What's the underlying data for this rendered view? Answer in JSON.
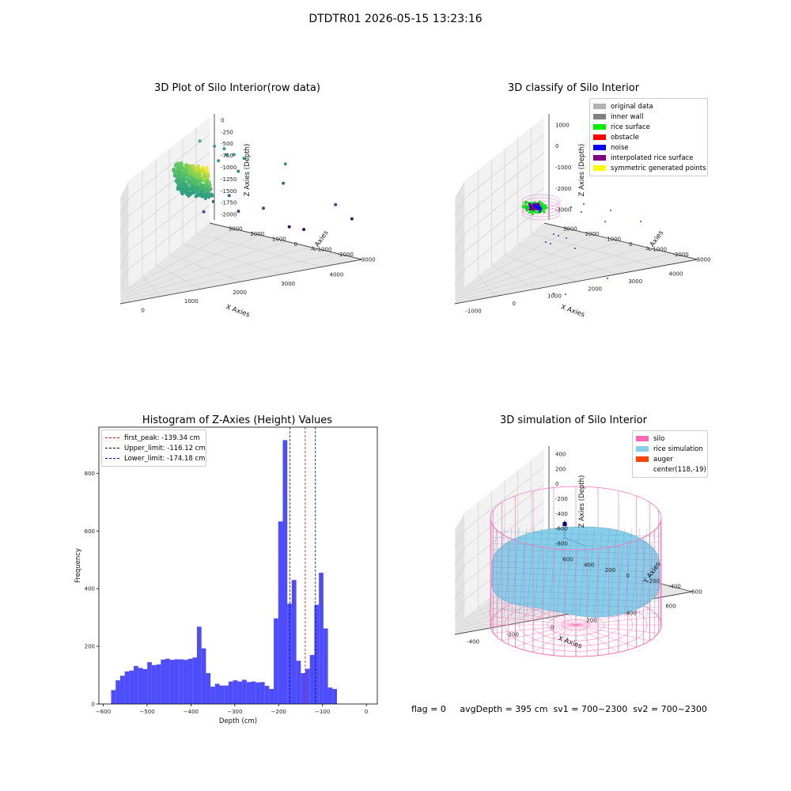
{
  "suptitle": "DTDTR01 2026-05-15 13:23:16",
  "footer": "flag = 0     avgDepth = 395 cm  sv1 = 700~2300  sv2 = 700~2300",
  "chart_data": [
    {
      "type": "scatter",
      "title": "3D Plot of Silo Interior(row data)",
      "xlabel": "X Axies",
      "ylabel": "Y Axies",
      "zlabel": "Z Axies (Depth)",
      "x_ticks": [
        "0",
        "1000",
        "2000",
        "3000",
        "4000"
      ],
      "y_ticks": [
        "-3000",
        "-2000",
        "-1000",
        "0",
        "1000",
        "2000",
        "3000"
      ],
      "z_ticks": [
        "0",
        "-250",
        "-500",
        "-750",
        "-1000",
        "-1250",
        "-1500",
        "-1750",
        "-2000"
      ],
      "xlim": [
        -700,
        4200
      ],
      "ylim": [
        -3300,
        3300
      ],
      "zlim": [
        -2100,
        100
      ],
      "colormap": "viridis",
      "cluster": {
        "x_range": [
          -200,
          300
        ],
        "y_range": [
          -400,
          400
        ],
        "z_range": [
          -100,
          -300
        ],
        "points": 520
      },
      "points": [
        {
          "x": 800,
          "y": 500,
          "z": -450
        },
        {
          "x": 1100,
          "y": 400,
          "z": -550
        },
        {
          "x": 1300,
          "y": 300,
          "z": -600
        },
        {
          "x": 1500,
          "y": 200,
          "z": -700
        },
        {
          "x": 1350,
          "y": 150,
          "z": -680
        },
        {
          "x": 1200,
          "y": -300,
          "z": -680
        },
        {
          "x": 1700,
          "y": 350,
          "z": -800
        },
        {
          "x": 1600,
          "y": -200,
          "z": -900
        },
        {
          "x": 2600,
          "y": -1800,
          "z": -700
        },
        {
          "x": 900,
          "y": 600,
          "z": -1150
        },
        {
          "x": 1100,
          "y": -400,
          "z": -1250
        },
        {
          "x": 1400,
          "y": 300,
          "z": -1300
        },
        {
          "x": 900,
          "y": -200,
          "z": -1400
        },
        {
          "x": 1600,
          "y": -100,
          "z": -1500
        },
        {
          "x": 2100,
          "y": 100,
          "z": -1550
        },
        {
          "x": 2500,
          "y": 200,
          "z": -1250
        },
        {
          "x": 3600,
          "y": -1300,
          "z": -1500
        },
        {
          "x": 3900,
          "y": -200,
          "z": -1900
        },
        {
          "x": 2600,
          "y": 900,
          "z": -2000
        },
        {
          "x": 2900,
          "y": 700,
          "z": -2050
        }
      ]
    },
    {
      "type": "scatter",
      "title": "3D classify of Silo Interior",
      "xlabel": "X Axies",
      "ylabel": "Y Axies",
      "zlabel": "Z Axies (Depth)",
      "x_ticks": [
        "-1000",
        "0",
        "1000",
        "2000",
        "3000",
        "4000"
      ],
      "y_ticks": [
        "-3000",
        "-2000",
        "-1000",
        "0",
        "1000",
        "2000",
        "3000"
      ],
      "z_ticks": [
        "1000",
        "0",
        "-1000",
        "-2000",
        "-3000"
      ],
      "legend": [
        {
          "label": "original data",
          "color": "#b3b3b3"
        },
        {
          "label": "inner wall",
          "color": "#808080"
        },
        {
          "label": "rice surface",
          "color": "#00ee00"
        },
        {
          "label": "obstacle",
          "color": "#ff0000"
        },
        {
          "label": "noise",
          "color": "#0000ff"
        },
        {
          "label": "interpolated rice surface",
          "color": "#800080"
        },
        {
          "label": "symmetric generated points",
          "color": "#ffff00"
        }
      ]
    },
    {
      "type": "bar",
      "title": "Histogram of Z-Axies (Height) Values",
      "xlabel": "Depth (cm)",
      "ylabel": "Frequency",
      "xlim": [
        -610,
        25
      ],
      "ylim": [
        0,
        960
      ],
      "x_ticks": [
        -600,
        -500,
        -400,
        -300,
        -200,
        -100,
        0
      ],
      "y_ticks": [
        0,
        200,
        400,
        600,
        800
      ],
      "bar_color": "#4d4dff",
      "bin_start": -582,
      "bin_width": 10.3,
      "values": [
        48,
        82,
        98,
        113,
        116,
        132,
        125,
        121,
        145,
        135,
        137,
        154,
        157,
        153,
        155,
        155,
        153,
        157,
        161,
        268,
        193,
        107,
        60,
        70,
        64,
        64,
        78,
        82,
        78,
        84,
        76,
        78,
        75,
        76,
        63,
        52,
        297,
        633,
        915,
        348,
        430,
        150,
        107,
        122,
        170,
        344,
        455,
        262,
        57,
        52
      ],
      "lines": [
        {
          "label": "first_peak: -139.34 cm",
          "value": -139.34,
          "color": "#ff0000"
        },
        {
          "label": "Upper_limit: -116.12 cm",
          "value": -116.12,
          "color": "#000080"
        },
        {
          "label": "Lower_limit: -174.18 cm",
          "value": -174.18,
          "color": "#0000ff"
        }
      ]
    },
    {
      "type": "surface",
      "title": "3D simulation of Silo Interior",
      "xlabel": "X Axies",
      "ylabel": "Y Axies",
      "zlabel": "Z Axies (Depth)",
      "x_ticks": [
        "-400",
        "-200",
        "0",
        "200",
        "400",
        "600"
      ],
      "y_ticks": [
        "-600",
        "-400",
        "-200",
        "0",
        "200",
        "400",
        "600"
      ],
      "z_ticks": [
        "400",
        "200",
        "0",
        "-200",
        "-400",
        "-600",
        "-800"
      ],
      "legend": [
        {
          "label": "silo",
          "color": "#ff69b4"
        },
        {
          "label": "rice simulation",
          "color": "#87ceeb"
        },
        {
          "label": "auger",
          "color": "#ff4500"
        },
        {
          "label": "center(118,-19)",
          "color": ""
        }
      ]
    }
  ]
}
